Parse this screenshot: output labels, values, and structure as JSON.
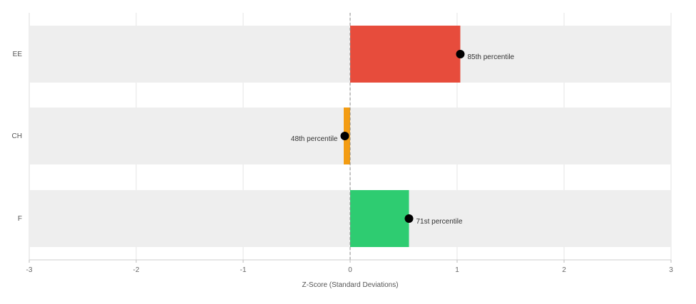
{
  "chart_data": {
    "type": "bar",
    "orientation": "horizontal",
    "categories": [
      "EE",
      "CH",
      "F"
    ],
    "values": [
      1.03,
      -0.05,
      0.55
    ],
    "percentile_labels": [
      "85th percentile",
      "48th percentile",
      "71st percentile"
    ],
    "bar_colors": [
      "#e74c3c",
      "#f39c12",
      "#2ecc71"
    ],
    "band_color": "#eeeeee",
    "marker_color": "#000000",
    "xlabel": "Z-Score (Standard Deviations)",
    "ylabel": "",
    "xlim": [
      -3,
      3
    ],
    "xticks": [
      "-3",
      "-2",
      "-1",
      "0",
      "1",
      "2",
      "3"
    ],
    "reference_line": {
      "x": 0,
      "style": "dashed"
    },
    "grid": "vertical",
    "legend": "none"
  }
}
